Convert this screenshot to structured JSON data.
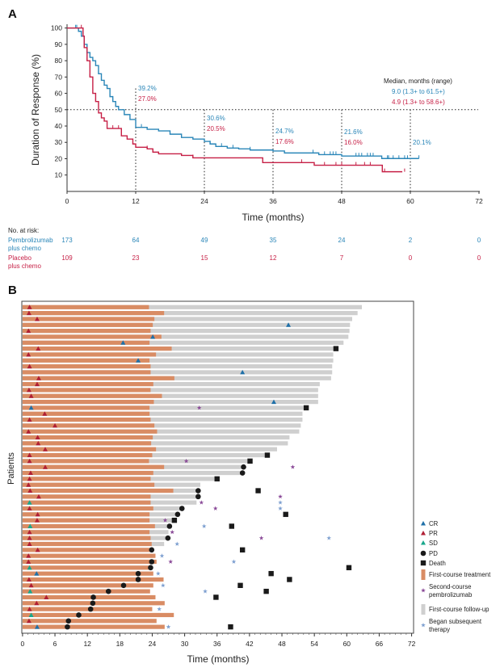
{
  "colors": {
    "pembro": "#2a86b8",
    "placebo": "#c61f45",
    "treatment": "#d98c64",
    "followup": "#cfcfcf",
    "CR": "#1f70a8",
    "PR": "#b01f34",
    "SD": "#17a78b",
    "PD": "#1a1a1a",
    "death": "#1a1a1a",
    "second_course": "#8a4a98",
    "subsequent": "#7d9fd0"
  },
  "chart_data": [
    {
      "panel": "A",
      "type": "line",
      "xlabel": "Time (months)",
      "ylabel": "Duration of Response (%)",
      "xlim": [
        0,
        72
      ],
      "ylim": [
        0,
        100
      ],
      "xticks": [
        0,
        12,
        24,
        36,
        48,
        60,
        72
      ],
      "yticks": [
        10,
        20,
        30,
        40,
        50,
        60,
        70,
        80,
        90,
        100
      ],
      "reference_line_y": 50,
      "series": [
        {
          "name": "Pembrolizumab plus chemo",
          "color_key": "pembro",
          "steps": [
            [
              0,
              100
            ],
            [
              1.5,
              100
            ],
            [
              2,
              98
            ],
            [
              2.5,
              95
            ],
            [
              3,
              90
            ],
            [
              3.5,
              85
            ],
            [
              4,
              82
            ],
            [
              4.5,
              80
            ],
            [
              5,
              77
            ],
            [
              5.5,
              72
            ],
            [
              6,
              68
            ],
            [
              6.5,
              65
            ],
            [
              7,
              63
            ],
            [
              7.5,
              58
            ],
            [
              8,
              55
            ],
            [
              8.5,
              52
            ],
            [
              9,
              50
            ],
            [
              10,
              47
            ],
            [
              11,
              44
            ],
            [
              12,
              39.2
            ],
            [
              14,
              38
            ],
            [
              16,
              37
            ],
            [
              18,
              35
            ],
            [
              20,
              33
            ],
            [
              22,
              32
            ],
            [
              24,
              30.6
            ],
            [
              25,
              29
            ],
            [
              26,
              27.5
            ],
            [
              28,
              26.5
            ],
            [
              30,
              26
            ],
            [
              32,
              25.3
            ],
            [
              36,
              24.7
            ],
            [
              38,
              23.5
            ],
            [
              44,
              22.5
            ],
            [
              48,
              21.6
            ],
            [
              55,
              20.1
            ],
            [
              61.5,
              20.1
            ]
          ],
          "censored": [
            1.5,
            1.7,
            3,
            5.5,
            8,
            13,
            25,
            27,
            29,
            32,
            43,
            45,
            46,
            46.5,
            47,
            50.5,
            51,
            51.5,
            52.5,
            53,
            53.5,
            56,
            56.2,
            57,
            58,
            59,
            59.5,
            61.5
          ]
        },
        {
          "name": "Placebo plus chemo",
          "color_key": "placebo",
          "steps": [
            [
              0,
              100
            ],
            [
              2.5,
              100
            ],
            [
              2.8,
              95
            ],
            [
              3,
              88
            ],
            [
              3.5,
              80
            ],
            [
              4,
              70
            ],
            [
              4.5,
              60
            ],
            [
              5,
              55
            ],
            [
              5.5,
              48
            ],
            [
              6,
              45
            ],
            [
              6.5,
              43
            ],
            [
              7,
              38.5
            ],
            [
              9,
              38.5
            ],
            [
              9.5,
              34
            ],
            [
              10.5,
              32
            ],
            [
              11.5,
              29
            ],
            [
              12,
              27
            ],
            [
              14,
              26
            ],
            [
              15,
              24
            ],
            [
              16,
              23
            ],
            [
              20,
              22
            ],
            [
              22,
              20.5
            ],
            [
              34,
              20.5
            ],
            [
              34.2,
              17.6
            ],
            [
              43,
              17.6
            ],
            [
              43.2,
              16
            ],
            [
              55,
              16
            ],
            [
              55.1,
              12
            ],
            [
              58.6,
              12
            ]
          ],
          "censored": [
            2.5,
            3,
            3.5,
            4,
            5,
            6.5,
            8,
            9,
            14,
            15,
            22,
            41,
            45,
            47,
            48,
            50.5,
            52,
            53,
            55.5,
            59
          ]
        }
      ],
      "landmarks": [
        {
          "x": 12,
          "labels": [
            {
              "text": "39.2%",
              "color_key": "pembro"
            },
            {
              "text": "27.0%",
              "color_key": "placebo"
            }
          ]
        },
        {
          "x": 24,
          "labels": [
            {
              "text": "30.6%",
              "color_key": "pembro"
            },
            {
              "text": "20.5%",
              "color_key": "placebo"
            }
          ]
        },
        {
          "x": 36,
          "labels": [
            {
              "text": "24.7%",
              "color_key": "pembro"
            },
            {
              "text": "17.6%",
              "color_key": "placebo"
            }
          ]
        },
        {
          "x": 48,
          "labels": [
            {
              "text": "21.6%",
              "color_key": "pembro"
            },
            {
              "text": "16.0%",
              "color_key": "placebo"
            }
          ]
        },
        {
          "x": 60,
          "labels": [
            {
              "text": "20.1%",
              "color_key": "pembro"
            }
          ]
        }
      ],
      "median_title": "Median, months (range)",
      "medians": [
        {
          "text": "9.0 (1.3+ to 61.5+)",
          "color_key": "pembro"
        },
        {
          "text": "4.9 (1.3+ to 58.6+)",
          "color_key": "placebo"
        }
      ],
      "risk_table": {
        "title": "No. at risk:",
        "times": [
          0,
          12,
          24,
          36,
          48,
          60,
          72
        ],
        "rows": [
          {
            "label": [
              "Pembrolizumab",
              "plus chemo"
            ],
            "color_key": "pembro",
            "values": [
              "173",
              "64",
              "49",
              "35",
              "24",
              "2",
              "0"
            ]
          },
          {
            "label": [
              "Placebo",
              "plus chemo"
            ],
            "color_key": "placebo",
            "values": [
              "109",
              "23",
              "15",
              "12",
              "7",
              "0",
              "0"
            ]
          }
        ]
      }
    },
    {
      "panel": "B",
      "type": "swimmer",
      "xlabel": "Time (months)",
      "ylabel": "Patients",
      "xlim": [
        0,
        72
      ],
      "xticks": [
        0,
        6,
        12,
        18,
        24,
        30,
        36,
        42,
        48,
        54,
        60,
        66,
        72
      ],
      "patients": [
        {
          "tx": 23.4,
          "fu": 62.8,
          "resp": [
            "PR",
            1.3
          ]
        },
        {
          "tx": 26.2,
          "fu": 62.0,
          "resp": [
            "PR",
            1.2
          ]
        },
        {
          "tx": 24.4,
          "fu": 61.0,
          "resp": [
            "PR",
            2.7
          ]
        },
        {
          "tx": 24.1,
          "fu": 60.6,
          "resp": [
            "CR",
            49.2
          ]
        },
        {
          "tx": 23.7,
          "fu": 60.5,
          "resp": [
            "PR",
            1.1
          ]
        },
        {
          "tx": 25.7,
          "fu": 60.3,
          "resp": [
            "CR",
            24.1
          ]
        },
        {
          "tx": 23.5,
          "fu": 59.4,
          "resp": [
            "CR",
            18.6
          ]
        },
        {
          "tx": 27.6,
          "fu": 57.6,
          "resp": [
            "PR",
            2.9
          ],
          "death": 58.0
        },
        {
          "tx": 24.7,
          "fu": 57.5,
          "resp": [
            "PR",
            1.1
          ]
        },
        {
          "tx": 23.5,
          "fu": 57.5,
          "resp": [
            "CR",
            21.4
          ]
        },
        {
          "tx": 23.7,
          "fu": 57.3,
          "resp": [
            "PR",
            1.3
          ]
        },
        {
          "tx": 23.7,
          "fu": 57.3,
          "resp": [
            "CR",
            40.7
          ]
        },
        {
          "tx": 28.1,
          "fu": 57.1,
          "resp": [
            "PR",
            3.0
          ]
        },
        {
          "tx": 24.2,
          "fu": 55.0,
          "resp": [
            "PR",
            2.7
          ]
        },
        {
          "tx": 23.7,
          "fu": 54.7,
          "resp": [
            "PR",
            1.2
          ]
        },
        {
          "tx": 25.8,
          "fu": 54.7,
          "resp": [
            "PR",
            1.6
          ]
        },
        {
          "tx": 24.3,
          "fu": 54.7,
          "resp": [
            "CR",
            46.5
          ]
        },
        {
          "tx": 23.5,
          "fu": 52.4,
          "resp": [
            "CR",
            1.6
          ],
          "second": 32.7,
          "death": 52.5
        },
        {
          "tx": 23.5,
          "fu": 51.8,
          "resp": [
            "PR",
            4.1
          ]
        },
        {
          "tx": 23.7,
          "fu": 51.8,
          "resp": [
            "PR",
            1.3
          ]
        },
        {
          "tx": 24.4,
          "fu": 51.5,
          "resp": [
            "PR",
            6.0
          ]
        },
        {
          "tx": 24.9,
          "fu": 51.2,
          "resp": [
            "PR",
            1.1
          ]
        },
        {
          "tx": 24.1,
          "fu": 49.4,
          "resp": [
            "PR",
            2.8
          ]
        },
        {
          "tx": 23.8,
          "fu": 49.1,
          "resp": [
            "PR",
            2.9
          ]
        },
        {
          "tx": 24.7,
          "fu": 47.1,
          "resp": [
            "PR",
            4.2
          ]
        },
        {
          "tx": 24.0,
          "fu": 44.9,
          "resp": [
            "PR",
            1.3
          ],
          "death": 45.3
        },
        {
          "tx": 23.4,
          "fu": 41.8,
          "resp": [
            "PR",
            1.3
          ],
          "second": 30.3,
          "death": 42.1
        },
        {
          "tx": 26.2,
          "fu": 40.7,
          "resp": [
            "PR",
            4.2
          ],
          "pd": 40.9,
          "second": 50.0
        },
        {
          "tx": 24.2,
          "fu": 40.7,
          "resp": [
            "PR",
            1.5
          ],
          "pd": 40.7
        },
        {
          "tx": 23.7,
          "fu": 35.7,
          "resp": [
            "PR",
            1.3
          ],
          "death": 36.0
        },
        {
          "tx": 24.4,
          "fu": 32.9,
          "resp": [
            "PR",
            1.1
          ]
        },
        {
          "tx": 27.9,
          "fu": 32.1,
          "resp": [
            "PR",
            1.4
          ],
          "pd": 32.5,
          "death": 43.6
        },
        {
          "tx": 23.7,
          "fu": 32.1,
          "resp": [
            "PR",
            3.0
          ],
          "pd": 32.5,
          "second": 47.7
        },
        {
          "tx": 23.7,
          "fu": 32.2,
          "resp": [
            "SD",
            1.3
          ],
          "second": 33.1,
          "subsequent": 47.7
        },
        {
          "tx": 24.2,
          "fu": 29.3,
          "resp": [
            "PR",
            1.3
          ],
          "pd": 29.5,
          "second": 35.7,
          "subsequent": 47.7
        },
        {
          "tx": 23.5,
          "fu": 28.6,
          "resp": [
            "PR",
            2.8
          ],
          "pd": 28.7,
          "death": 48.7
        },
        {
          "tx": 23.5,
          "fu": 28.0,
          "resp": [
            "PR",
            2.7
          ],
          "second": 26.4,
          "death": 28.1
        },
        {
          "tx": 24.5,
          "fu": 27.0,
          "resp": [
            "SD",
            1.4
          ],
          "pd": 27.2,
          "subsequent": 33.6,
          "death": 38.7
        },
        {
          "tx": 23.5,
          "fu": 27.0,
          "resp": [
            "PR",
            1.3
          ],
          "second": 27.7
        },
        {
          "tx": 23.7,
          "fu": 26.9,
          "resp": [
            "PR",
            1.3
          ],
          "pd": 26.9,
          "second": 44.2,
          "subsequent": 56.7
        },
        {
          "tx": 23.9,
          "fu": 26.2,
          "resp": [
            "PR",
            1.3
          ],
          "subsequent": 28.6
        },
        {
          "tx": 23.9,
          "resp": [
            "PR",
            2.8
          ],
          "pd": 23.9,
          "death": 40.7
        },
        {
          "tx": 24.6,
          "resp": [
            "PR",
            1.1
          ],
          "subsequent": 25.8
        },
        {
          "tx": 24.8,
          "resp": [
            "PR",
            1.1
          ],
          "pd": 23.9,
          "second": 27.4,
          "subsequent": 39.1
        },
        {
          "tx": 23.7,
          "resp": [
            "SD",
            1.3
          ],
          "pd": 23.7,
          "death": 60.4
        },
        {
          "tx": 24.2,
          "resp": [
            "CR",
            2.6
          ],
          "pd": 21.4,
          "subsequent": 25.1,
          "death": 46.0
        },
        {
          "tx": 26.1,
          "resp": [
            "PR",
            1.2
          ],
          "pd": 21.4,
          "death": 49.4
        },
        {
          "tx": 24.2,
          "resp": [
            "PR",
            1.6
          ],
          "pd": 18.7,
          "subsequent": 26.0,
          "death": 40.3
        },
        {
          "tx": 23.6,
          "resp": [
            "SD",
            1.4
          ],
          "pd": 15.9,
          "subsequent": 33.8,
          "death": 45.1
        },
        {
          "tx": 24.6,
          "resp": [
            "PR",
            4.4
          ],
          "pd": 13.1,
          "death": 35.8
        },
        {
          "tx": 26.3,
          "resp": [
            "PR",
            2.6
          ],
          "pd": 13.0
        },
        {
          "tx": 24.0,
          "resp": [
            "PR",
            1.3
          ],
          "pd": 12.6,
          "subsequent": 25.3
        },
        {
          "tx": 28.0,
          "resp": [
            "SD",
            1.6
          ],
          "pd": 10.4
        },
        {
          "tx": 24.8,
          "resp": [
            "PR",
            1.2
          ],
          "pd": 8.5
        },
        {
          "tx": 26.3,
          "resp": [
            "CR",
            2.7
          ],
          "pd": 8.3,
          "subsequent": 27.0,
          "death": 38.5
        }
      ],
      "legend": [
        {
          "key": "CR",
          "shape": "triangle",
          "label": [
            "CR"
          ]
        },
        {
          "key": "PR",
          "shape": "triangle",
          "label": [
            "PR"
          ]
        },
        {
          "key": "SD",
          "shape": "triangle",
          "label": [
            "SD"
          ]
        },
        {
          "key": "PD",
          "shape": "circle",
          "label": [
            "PD"
          ]
        },
        {
          "key": "death",
          "shape": "square",
          "label": [
            "Death"
          ]
        },
        {
          "key": "treatment",
          "shape": "bar",
          "label": [
            "First-course treatment"
          ]
        },
        {
          "key": "second_course",
          "shape": "star",
          "label": [
            "Second-course",
            "pembrolizumab"
          ]
        },
        {
          "key": "followup",
          "shape": "bar",
          "label": [
            "First-course follow-up"
          ]
        },
        {
          "key": "subsequent",
          "shape": "star",
          "label": [
            "Began subsequent",
            "therapy"
          ]
        }
      ]
    }
  ],
  "panel_labels": [
    "A",
    "B"
  ]
}
